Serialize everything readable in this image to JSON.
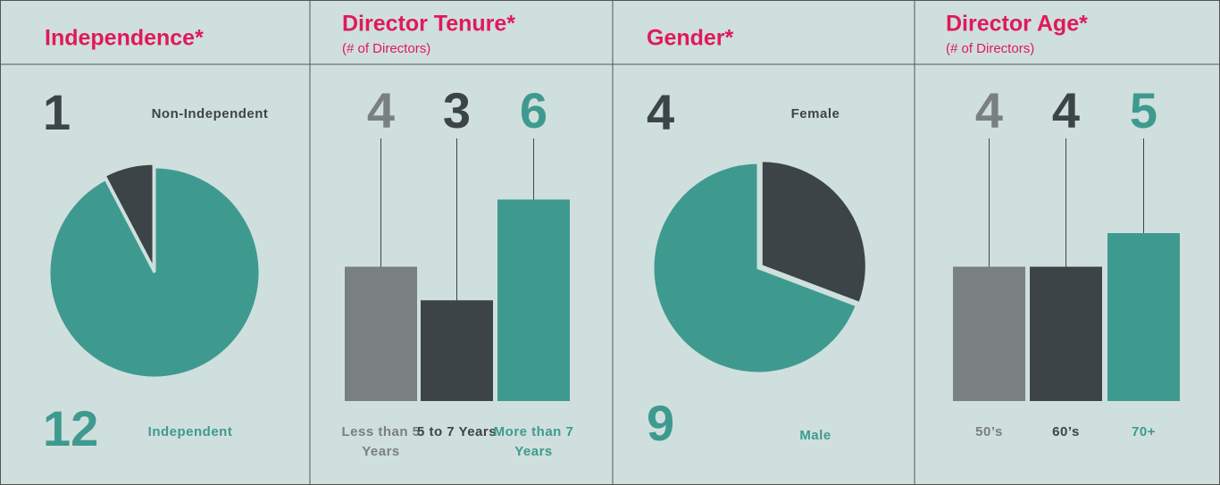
{
  "chart_data": [
    {
      "type": "pie",
      "title": "Independence*",
      "categories": [
        "Non-Independent",
        "Independent"
      ],
      "values": [
        1,
        12
      ],
      "colors": [
        "#3d4447",
        "#3e9a8f"
      ]
    },
    {
      "type": "bar",
      "title": "Director Tenure*",
      "subtitle": "(# of Directors)",
      "categories": [
        "Less than 5 Years",
        "5 to 7 Years",
        "More than 7 Years"
      ],
      "values": [
        4,
        3,
        6
      ],
      "colors": [
        "#7a7f82",
        "#3d4447",
        "#3e9a8f"
      ]
    },
    {
      "type": "pie",
      "title": "Gender*",
      "categories": [
        "Female",
        "Male"
      ],
      "values": [
        4,
        9
      ],
      "colors": [
        "#3d4447",
        "#3e9a8f"
      ]
    },
    {
      "type": "bar",
      "title": "Director Age*",
      "subtitle": "(# of Directors)",
      "categories": [
        "50’s",
        "60’s",
        "70+"
      ],
      "values": [
        4,
        4,
        5
      ],
      "colors": [
        "#7a7f82",
        "#3d4447",
        "#3e9a8f"
      ]
    }
  ]
}
